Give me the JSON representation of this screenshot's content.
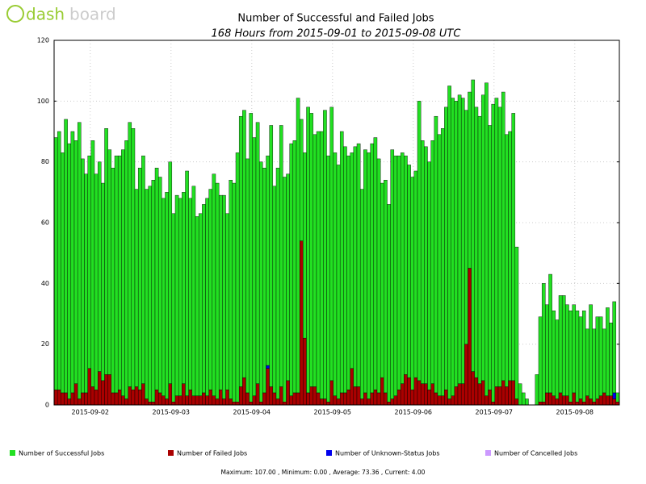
{
  "logo": {
    "left": "dash",
    "right": "board"
  },
  "chart_data": {
    "type": "bar",
    "stacked": true,
    "title": "Number of Successful and Failed Jobs",
    "subtitle": "168 Hours from 2015-09-01 to 2015-09-08 UTC",
    "footer": "Maximum: 107.00 , Minimum: 0.00 , Average: 73.36 , Current: 4.00",
    "xlim": [
      0,
      168
    ],
    "xticks": [
      {
        "value": 10.75,
        "label": "2015-09-02"
      },
      {
        "value": 34.75,
        "label": "2015-09-03"
      },
      {
        "value": 58.75,
        "label": "2015-09-04"
      },
      {
        "value": 82.75,
        "label": "2015-09-05"
      },
      {
        "value": 106.75,
        "label": "2015-09-06"
      },
      {
        "value": 130.75,
        "label": "2015-09-07"
      },
      {
        "value": 154.75,
        "label": "2015-09-08"
      }
    ],
    "ylim": [
      0,
      120
    ],
    "yticks": [
      0,
      20,
      40,
      60,
      80,
      100,
      120
    ],
    "grid": true,
    "series": [
      {
        "name": "Number of Successful Jobs",
        "color": "#22e022",
        "values": [
          83,
          85,
          79,
          90,
          84,
          86,
          80,
          91,
          77,
          72,
          70,
          81,
          71,
          69,
          65,
          81,
          74,
          74,
          78,
          77,
          81,
          85,
          87,
          86,
          65,
          73,
          75,
          69,
          71,
          73,
          73,
          71,
          65,
          68,
          73,
          62,
          66,
          65,
          63,
          74,
          63,
          69,
          59,
          60,
          62,
          65,
          66,
          73,
          71,
          64,
          67,
          58,
          72,
          72,
          82,
          89,
          88,
          77,
          95,
          85,
          86,
          79,
          74,
          69,
          86,
          68,
          76,
          86,
          74,
          68,
          83,
          83,
          97,
          40,
          61,
          94,
          90,
          83,
          86,
          88,
          95,
          81,
          90,
          80,
          77,
          86,
          81,
          77,
          71,
          79,
          80,
          69,
          80,
          81,
          82,
          83,
          77,
          64,
          70,
          65,
          82,
          79,
          77,
          76,
          72,
          70,
          70,
          68,
          92,
          80,
          78,
          75,
          80,
          91,
          86,
          88,
          93,
          103,
          98,
          94,
          95,
          94,
          77,
          58,
          96,
          89,
          88,
          94,
          103,
          87,
          98,
          95,
          92,
          95,
          83,
          82,
          88,
          50,
          7,
          4,
          2,
          0,
          0,
          10,
          28,
          39,
          29,
          39,
          28,
          26,
          32,
          33,
          30,
          30,
          29,
          30,
          27,
          30,
          22,
          31,
          24,
          27,
          26,
          21,
          29,
          24,
          30,
          3
        ]
      },
      {
        "name": "Number of Failed Jobs",
        "color": "#aa0000",
        "values": [
          5,
          5,
          4,
          4,
          2,
          4,
          7,
          2,
          4,
          4,
          12,
          6,
          5,
          11,
          8,
          10,
          10,
          4,
          4,
          5,
          3,
          2,
          6,
          5,
          6,
          5,
          7,
          2,
          1,
          1,
          5,
          4,
          3,
          2,
          7,
          1,
          3,
          3,
          7,
          3,
          5,
          3,
          3,
          3,
          4,
          3,
          5,
          3,
          2,
          5,
          2,
          5,
          2,
          1,
          1,
          6,
          9,
          4,
          1,
          3,
          7,
          1,
          4,
          12,
          6,
          4,
          2,
          6,
          1,
          8,
          3,
          4,
          4,
          54,
          22,
          4,
          6,
          6,
          4,
          2,
          2,
          1,
          8,
          3,
          2,
          4,
          4,
          5,
          12,
          6,
          6,
          2,
          4,
          2,
          4,
          5,
          4,
          9,
          4,
          1,
          2,
          3,
          5,
          7,
          10,
          9,
          5,
          9,
          8,
          7,
          7,
          5,
          7,
          4,
          3,
          3,
          5,
          2,
          3,
          6,
          7,
          7,
          20,
          45,
          11,
          9,
          7,
          8,
          3,
          5,
          1,
          6,
          6,
          8,
          6,
          8,
          8,
          2,
          0,
          0,
          0,
          0,
          0,
          0,
          1,
          1,
          4,
          4,
          3,
          2,
          4,
          3,
          3,
          1,
          4,
          1,
          2,
          1,
          3,
          2,
          1,
          2,
          3,
          4,
          3,
          3,
          2,
          1
        ]
      },
      {
        "name": "Number of Unknown-Status Jobs",
        "color": "#0000ee",
        "values": [
          0,
          0,
          0,
          0,
          0,
          0,
          0,
          0,
          0,
          0,
          0,
          0,
          0,
          0,
          0,
          0,
          0,
          0,
          0,
          0,
          0,
          0,
          0,
          0,
          0,
          0,
          0,
          0,
          0,
          0,
          0,
          0,
          0,
          0,
          0,
          0,
          0,
          0,
          0,
          0,
          0,
          0,
          0,
          0,
          0,
          0,
          0,
          0,
          0,
          0,
          0,
          0,
          0,
          0,
          0,
          0,
          0,
          0,
          0,
          0,
          0,
          0,
          0,
          1,
          0,
          0,
          0,
          0,
          0,
          0,
          0,
          0,
          0,
          0,
          0,
          0,
          0,
          0,
          0,
          0,
          0,
          0,
          0,
          0,
          0,
          0,
          0,
          0,
          0,
          0,
          0,
          0,
          0,
          0,
          0,
          0,
          0,
          0,
          0,
          0,
          0,
          0,
          0,
          0,
          0,
          0,
          0,
          0,
          0,
          0,
          0,
          0,
          0,
          0,
          0,
          0,
          0,
          0,
          0,
          0,
          0,
          0,
          0,
          0,
          0,
          0,
          0,
          0,
          0,
          0,
          0,
          0,
          0,
          0,
          0,
          0,
          0,
          0,
          0,
          0,
          0,
          0,
          0,
          0,
          0,
          0,
          0,
          0,
          0,
          0,
          0,
          0,
          0,
          0,
          0,
          0,
          0,
          0,
          0,
          0,
          0,
          0,
          0,
          0,
          0,
          0,
          2,
          0
        ]
      },
      {
        "name": "Number of Cancelled Jobs",
        "color": "#cc99ff",
        "values": [
          0,
          0,
          0,
          0,
          0,
          0,
          0,
          0,
          0,
          0,
          0,
          0,
          0,
          0,
          0,
          0,
          0,
          0,
          0,
          0,
          0,
          0,
          0,
          0,
          0,
          0,
          0,
          0,
          0,
          0,
          0,
          0,
          0,
          0,
          0,
          0,
          0,
          0,
          0,
          0,
          0,
          0,
          0,
          0,
          0,
          0,
          0,
          0,
          0,
          0,
          0,
          0,
          0,
          0,
          0,
          0,
          0,
          0,
          0,
          0,
          0,
          0,
          0,
          0,
          0,
          0,
          0,
          0,
          0,
          0,
          0,
          0,
          0,
          0,
          0,
          0,
          0,
          0,
          0,
          0,
          0,
          0,
          0,
          0,
          0,
          0,
          0,
          0,
          0,
          0,
          0,
          0,
          0,
          0,
          0,
          0,
          0,
          0,
          0,
          0,
          0,
          0,
          0,
          0,
          0,
          0,
          0,
          0,
          0,
          0,
          0,
          0,
          0,
          0,
          0,
          0,
          0,
          0,
          0,
          0,
          0,
          0,
          0,
          0,
          0,
          0,
          0,
          0,
          0,
          0,
          0,
          0,
          0,
          0,
          0,
          0,
          0,
          0,
          0,
          0,
          0,
          0,
          0,
          0,
          0,
          0,
          0,
          0,
          0,
          0,
          0,
          0,
          0,
          0,
          0,
          0,
          0,
          0,
          0,
          0,
          0,
          0,
          0,
          0,
          0,
          0,
          0,
          0
        ]
      }
    ],
    "stack_order": [
      1,
      2,
      3,
      0
    ]
  }
}
